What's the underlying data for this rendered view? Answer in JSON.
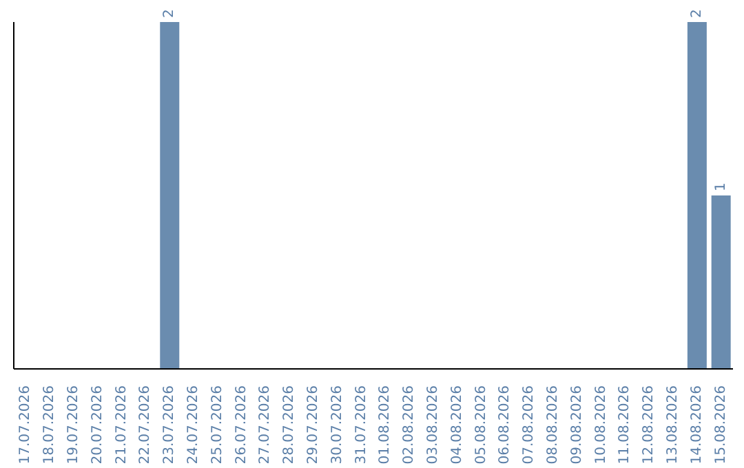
{
  "chart_data": {
    "type": "bar",
    "categories": [
      "17.07.2026",
      "18.07.2026",
      "19.07.2026",
      "20.07.2026",
      "21.07.2026",
      "22.07.2026",
      "23.07.2026",
      "24.07.2026",
      "25.07.2026",
      "26.07.2026",
      "27.07.2026",
      "28.07.2026",
      "29.07.2026",
      "30.07.2026",
      "31.07.2026",
      "01.08.2026",
      "02.08.2026",
      "03.08.2026",
      "04.08.2026",
      "05.08.2026",
      "06.08.2026",
      "07.08.2026",
      "08.08.2026",
      "09.08.2026",
      "10.08.2026",
      "11.08.2026",
      "12.08.2026",
      "13.08.2026",
      "14.08.2026",
      "15.08.2026"
    ],
    "values": [
      null,
      null,
      null,
      null,
      null,
      null,
      2,
      null,
      null,
      null,
      null,
      null,
      null,
      null,
      null,
      null,
      null,
      null,
      null,
      null,
      null,
      null,
      null,
      null,
      null,
      null,
      null,
      null,
      2,
      1
    ],
    "value_labels": [
      null,
      null,
      null,
      null,
      null,
      null,
      "2",
      null,
      null,
      null,
      null,
      null,
      null,
      null,
      null,
      null,
      null,
      null,
      null,
      null,
      null,
      null,
      null,
      null,
      null,
      null,
      null,
      null,
      "2",
      "1"
    ],
    "color": "#6a8caf",
    "grid": false,
    "legend": false
  }
}
